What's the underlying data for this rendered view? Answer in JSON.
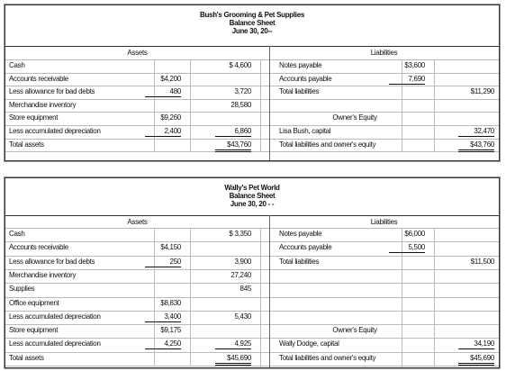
{
  "sheets": [
    {
      "company": "Bush's Grooming & Pet Supplies",
      "title": "Balance Sheet",
      "date": "June 30, 20--",
      "assets_heading": "Assets",
      "liabilities_heading": "Liabilities",
      "equity_heading": "Owner's Equity",
      "assets": [
        {
          "label": "Cash",
          "total": "$ 4,600"
        },
        {
          "label": "Accounts receivable",
          "amount": "$4,200"
        },
        {
          "label": "Less allowance for bad debts",
          "amount": "480",
          "total": "3,720",
          "rule": "amount"
        },
        {
          "label": "Merchandise inventory",
          "total": "28,580"
        },
        {
          "label": "Store equipment",
          "amount": "$9,260"
        },
        {
          "label": "Less accumulated depreciation",
          "amount": "2,400",
          "total": "6,860",
          "rule": "amount total"
        },
        {
          "label": "Total assets",
          "total": "$43,760",
          "double": "total"
        }
      ],
      "liabilities": [
        {
          "label": "Notes payable",
          "amount": "$3,600"
        },
        {
          "label": "Accounts payable",
          "amount": "7,690",
          "rule": "amount"
        },
        {
          "label": "Total liabilities",
          "total": "$11,290"
        }
      ],
      "equity": [
        {
          "label": "Lisa Bush, capital",
          "total": "32,470",
          "rule": "total"
        },
        {
          "label": "Total liabilities and owner's equity",
          "total": "$43,760",
          "double": "total"
        }
      ]
    },
    {
      "company": "Wally's Pet World",
      "title": "Balance Sheet",
      "date": "June 30, 20 - -",
      "assets_heading": "Assets",
      "liabilities_heading": "Liabilities",
      "equity_heading": "Owner's Equity",
      "assets": [
        {
          "label": "Cash",
          "total": "$ 3,350"
        },
        {
          "label": "Accounts receivable",
          "amount": "$4,150"
        },
        {
          "label": "Less allowance for bad debts",
          "amount": "250",
          "total": "3,900",
          "rule": "amount"
        },
        {
          "label": "Merchandise inventory",
          "total": "27,240"
        },
        {
          "label": "Supplies",
          "total": "845"
        },
        {
          "label": "Office equipment",
          "amount": "$8,830"
        },
        {
          "label": "Less accumulated depreciation",
          "amount": "3,400",
          "total": "5,430",
          "rule": "amount"
        },
        {
          "label": "Store equipment",
          "amount": "$9,175"
        },
        {
          "label": "Less accumulated depreciation",
          "amount": "4,250",
          "total": "4,925",
          "rule": "amount total"
        },
        {
          "label": "Total assets",
          "total": "$45,690",
          "double": "total"
        }
      ],
      "liabilities": [
        {
          "label": "Notes payable",
          "amount": "$6,000"
        },
        {
          "label": "Accounts payable",
          "amount": "5,500",
          "rule": "amount"
        },
        {
          "label": "Total liabilities",
          "total": "$11,500"
        }
      ],
      "equity": [
        {
          "label": "Wally Dodge, capital",
          "total": "34,190",
          "rule": "total"
        },
        {
          "label": "Total liabilities and owner's equity",
          "total": "$45,690",
          "double": "total"
        }
      ]
    }
  ]
}
